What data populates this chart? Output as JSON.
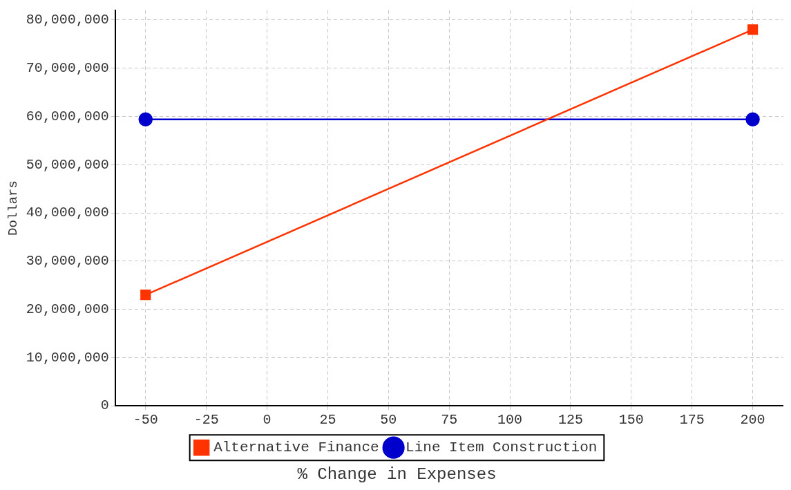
{
  "chart_data": {
    "type": "line",
    "xlabel": "% Change in Expenses",
    "ylabel": "Dollars",
    "x": [
      -50,
      200
    ],
    "series": [
      {
        "name": "Alternative Finance",
        "color": "#ff3300",
        "marker": "square",
        "values": [
          23000000,
          78000000
        ]
      },
      {
        "name": "Line Item Construction",
        "color": "#0000cc",
        "marker": "circle",
        "values": [
          59400000,
          59400000
        ]
      }
    ],
    "xlim": [
      -62.5,
      212.5
    ],
    "xticks": [
      -50,
      -25,
      0,
      25,
      50,
      75,
      100,
      125,
      150,
      175,
      200
    ],
    "ylim": [
      0,
      82000000
    ],
    "yticks": [
      0,
      {
        "value": 10000000,
        "label": "10,000,000"
      },
      {
        "value": 20000000,
        "label": "20,000,000"
      },
      {
        "value": 30000000,
        "label": "30,000,000"
      },
      {
        "value": 40000000,
        "label": "40,000,000"
      },
      {
        "value": 50000000,
        "label": "50,000,000"
      },
      {
        "value": 60000000,
        "label": "60,000,000"
      },
      {
        "value": 70000000,
        "label": "70,000,000"
      },
      {
        "value": 80000000,
        "label": "80,000,000"
      }
    ],
    "grid": true,
    "legend": "bottom",
    "line_style": "solid"
  }
}
